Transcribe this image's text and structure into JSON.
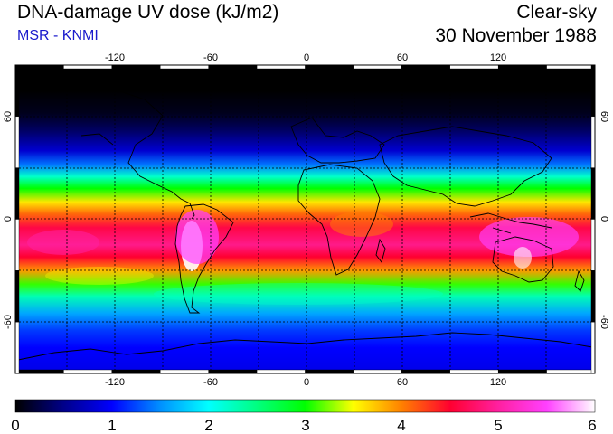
{
  "header": {
    "title": "DNA-damage UV dose (kJ/m2)",
    "source": "MSR - KNMI",
    "condition": "Clear-sky",
    "date": "30 November 1988"
  },
  "colors": {
    "source_text": "#1a1acc"
  },
  "map": {
    "lon_range": [
      -180,
      180
    ],
    "lat_range": [
      -90,
      90
    ],
    "lon_ticks": [
      -120,
      -60,
      0,
      60,
      120
    ],
    "lon_tick_labels": [
      "-120",
      "-60",
      "0",
      "60",
      "120"
    ],
    "lat_ticks": [
      60,
      0,
      -60
    ],
    "lat_tick_labels": [
      "60",
      "0",
      "-60"
    ],
    "gridlines": "dashed every 30 degrees",
    "field_profile": [
      {
        "lat": 90,
        "value": 0.0
      },
      {
        "lat": 75,
        "value": 0.0
      },
      {
        "lat": 62,
        "value": 0.1
      },
      {
        "lat": 52,
        "value": 0.35
      },
      {
        "lat": 40,
        "value": 0.8
      },
      {
        "lat": 32,
        "value": 1.4
      },
      {
        "lat": 25,
        "value": 2.2
      },
      {
        "lat": 18,
        "value": 3.0
      },
      {
        "lat": 10,
        "value": 3.6
      },
      {
        "lat": 3,
        "value": 4.1
      },
      {
        "lat": -5,
        "value": 4.6
      },
      {
        "lat": -15,
        "value": 4.9
      },
      {
        "lat": -22,
        "value": 4.5
      },
      {
        "lat": -30,
        "value": 3.9
      },
      {
        "lat": -38,
        "value": 3.1
      },
      {
        "lat": -45,
        "value": 2.3
      },
      {
        "lat": -55,
        "value": 1.6
      },
      {
        "lat": -65,
        "value": 1.2
      },
      {
        "lat": -75,
        "value": 1.0
      },
      {
        "lat": -90,
        "value": 0.9
      }
    ]
  },
  "colorbar": {
    "min": 0,
    "max": 6,
    "tick_values": [
      0,
      1,
      2,
      3,
      4,
      5,
      6
    ],
    "tick_labels": [
      "0",
      "1",
      "2",
      "3",
      "4",
      "5",
      "6"
    ],
    "stops": [
      {
        "value": 0.0,
        "color": "#000000"
      },
      {
        "value": 0.5,
        "color": "#00008a"
      },
      {
        "value": 1.0,
        "color": "#0000ff"
      },
      {
        "value": 1.5,
        "color": "#0090ff"
      },
      {
        "value": 2.0,
        "color": "#00ffff"
      },
      {
        "value": 2.5,
        "color": "#00ff80"
      },
      {
        "value": 3.0,
        "color": "#00ff00"
      },
      {
        "value": 3.5,
        "color": "#ffff00"
      },
      {
        "value": 4.0,
        "color": "#ff8000"
      },
      {
        "value": 4.5,
        "color": "#ff0030"
      },
      {
        "value": 5.0,
        "color": "#ff20a0"
      },
      {
        "value": 5.5,
        "color": "#ff40ff"
      },
      {
        "value": 6.0,
        "color": "#ffffff"
      }
    ]
  }
}
